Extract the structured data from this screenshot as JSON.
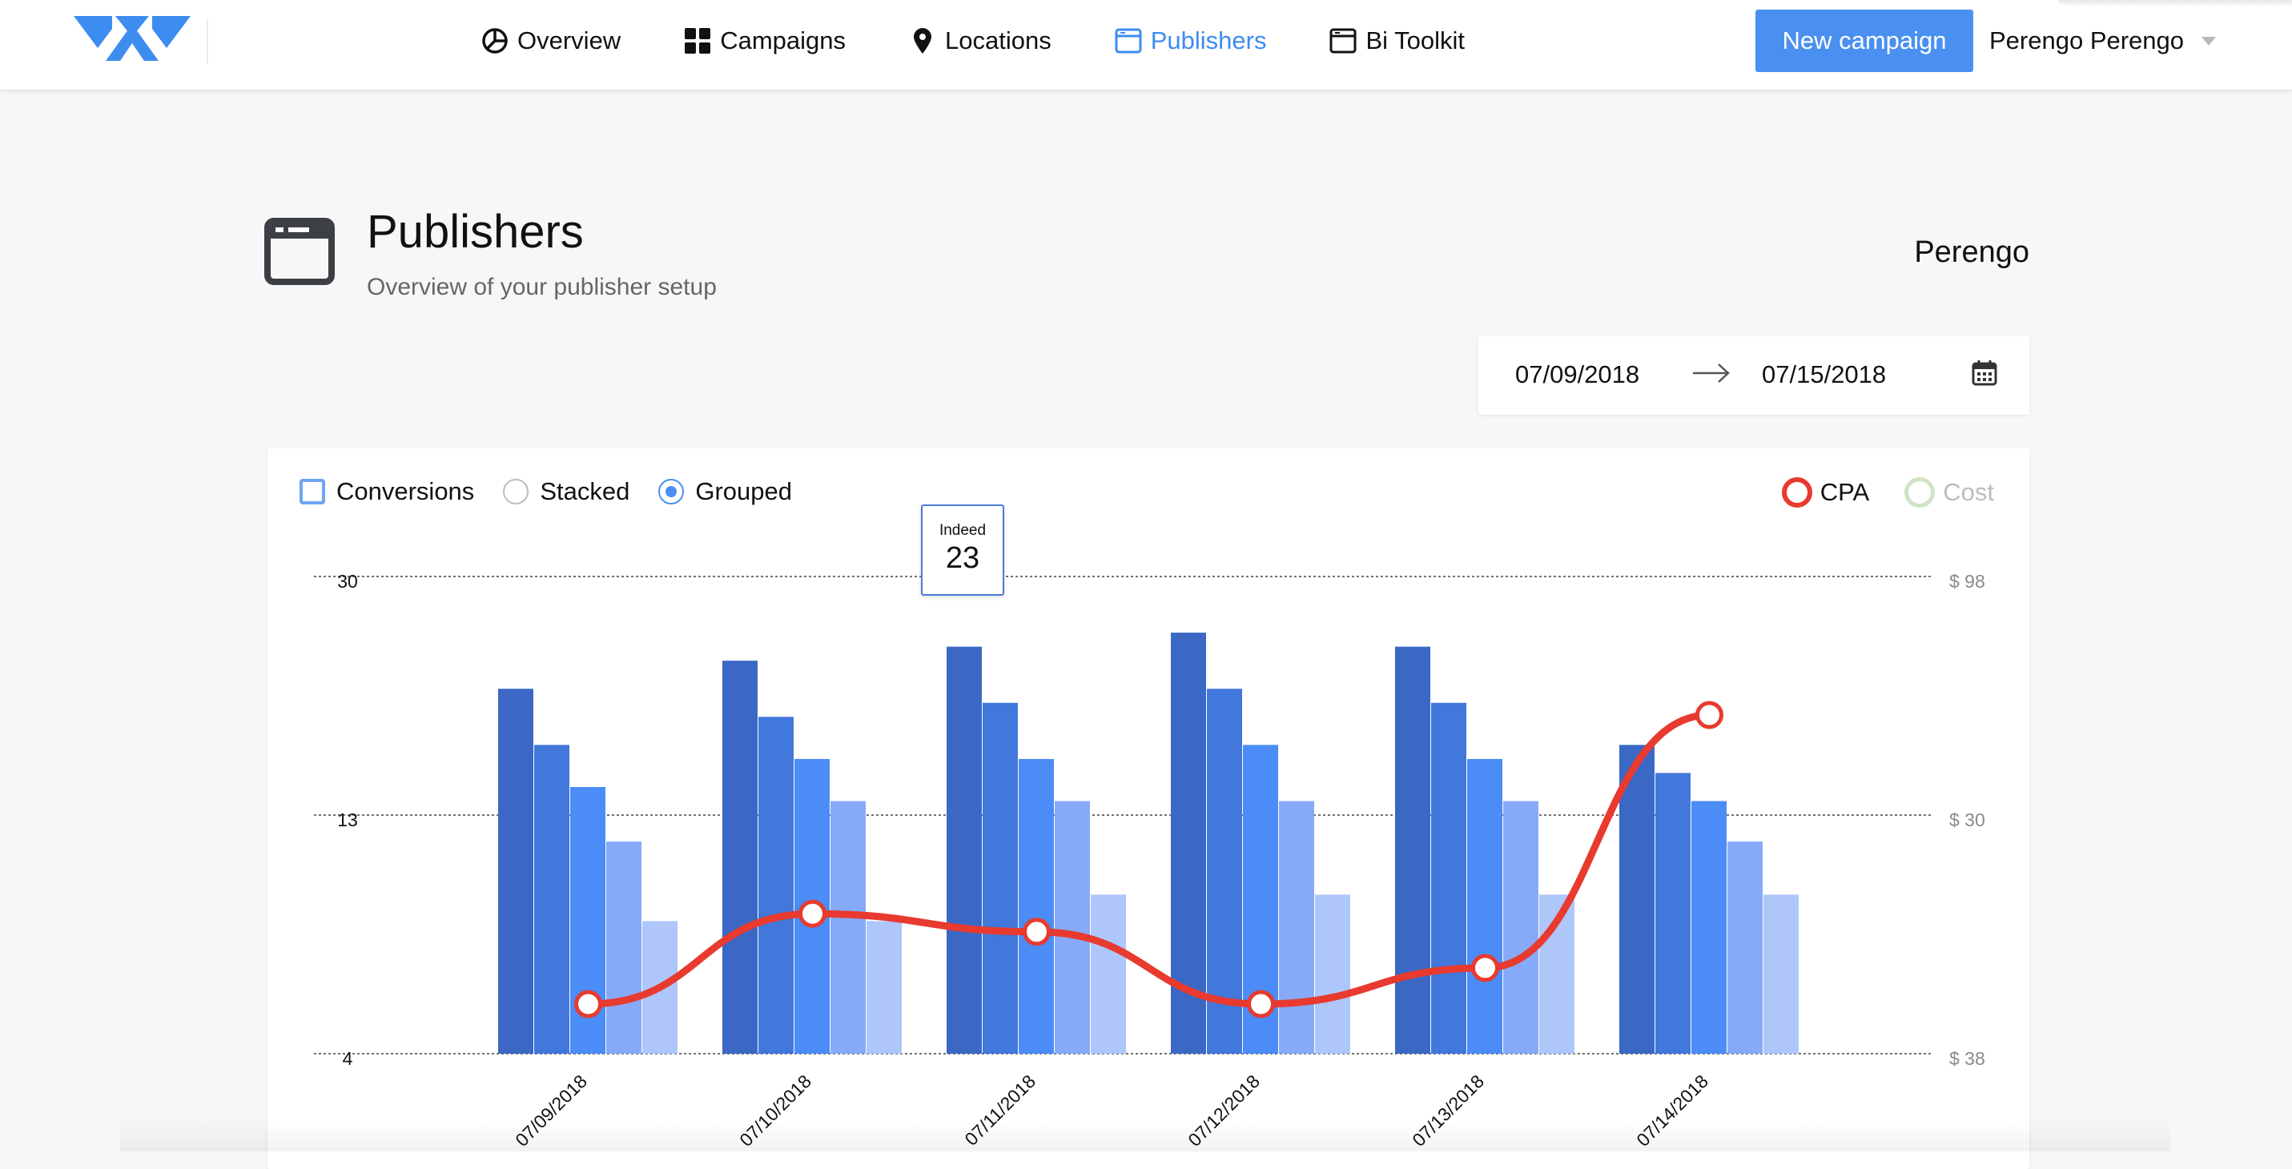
{
  "nav": {
    "items": [
      {
        "label": "Overview",
        "icon": "pie-chart-icon"
      },
      {
        "label": "Campaigns",
        "icon": "grid-icon"
      },
      {
        "label": "Locations",
        "icon": "map-pin-icon"
      },
      {
        "label": "Publishers",
        "icon": "browser-window-icon",
        "active": true
      },
      {
        "label": "Bi Toolkit",
        "icon": "browser-window-icon"
      }
    ],
    "new_campaign_label": "New campaign",
    "user_name": "Perengo Perengo",
    "accent_color": "#4a90f0"
  },
  "page": {
    "title": "Publishers",
    "subtitle": "Overview of your publisher setup",
    "account": "Perengo"
  },
  "date_range": {
    "start": "07/09/2018",
    "end": "07/15/2018"
  },
  "controls": {
    "conversions_label": "Conversions",
    "stacked_label": "Stacked",
    "grouped_label": "Grouped",
    "selected_mode": "Grouped"
  },
  "legend": {
    "cpa_label": "CPA",
    "cost_label": "Cost",
    "cpa_color": "#e83a2e",
    "cost_color": "#cfe3c7"
  },
  "tooltip": {
    "label": "Indeed",
    "value": "23"
  },
  "chart_data": {
    "type": "bar",
    "categories": [
      "07/09/2018",
      "07/10/2018",
      "07/11/2018",
      "07/12/2018",
      "07/13/2018",
      "07/14/2018"
    ],
    "series": [
      {
        "values": [
          22,
          24,
          25,
          26,
          25,
          18
        ],
        "color": "#3b68c4"
      },
      {
        "values": [
          18,
          20,
          21,
          22,
          21,
          16
        ],
        "color": "#4277dc"
      },
      {
        "values": [
          15,
          17,
          17,
          18,
          17,
          14
        ],
        "color": "#4b8cf7"
      },
      {
        "values": [
          12,
          14,
          14,
          14,
          14,
          12
        ],
        "color": "#86aaf8"
      },
      {
        "values": [
          9,
          9,
          10,
          10,
          10,
          10
        ],
        "color": "#aec6fa"
      }
    ],
    "line": {
      "name": "CPA",
      "values": [
        35,
        40,
        39,
        35,
        37,
        51
      ],
      "color": "#e83a2e"
    },
    "y_left_ticks": [
      "30",
      "13",
      "4"
    ],
    "y_right_ticks": [
      "$ 98",
      "$ 30",
      "$ 38"
    ],
    "ylim": [
      4,
      30
    ],
    "grid": "dotted"
  }
}
